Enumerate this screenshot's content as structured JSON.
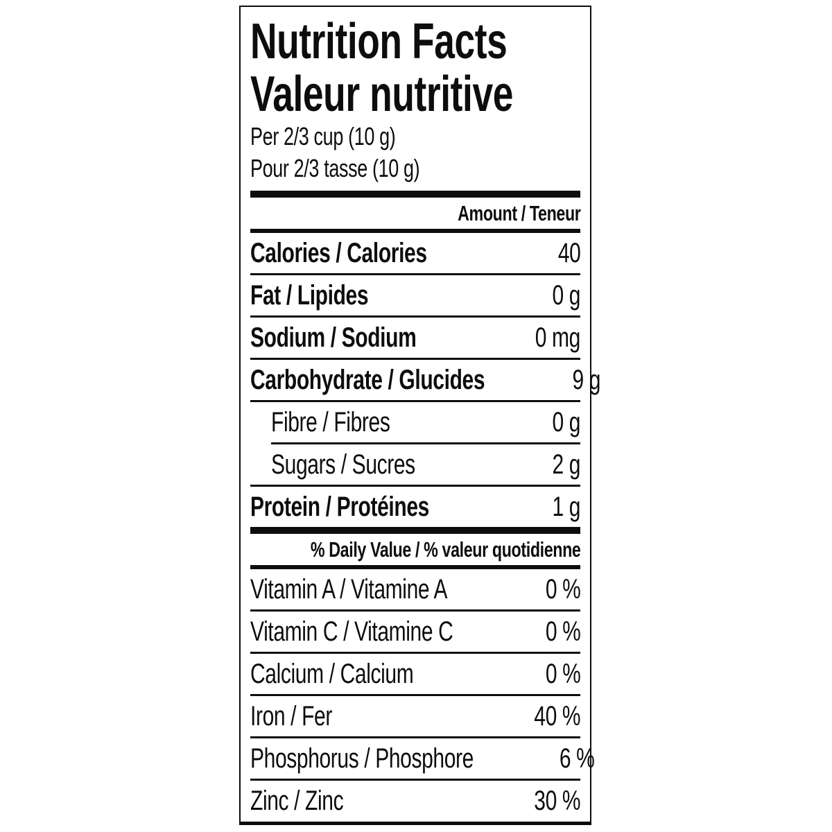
{
  "label": {
    "title_en": "Nutrition Facts",
    "title_fr": "Valeur nutritive",
    "serving_en": "Per 2/3 cup (10 g)",
    "serving_fr": "Pour 2/3 tasse (10 g)",
    "amount_header": "Amount / Teneur",
    "daily_value_header": "% Daily Value / % valeur quotidienne",
    "colors": {
      "text": "#0d0d0d",
      "background": "#ffffff",
      "rule": "#0d0d0d"
    }
  },
  "nutrients": [
    {
      "label": "Calories / Calories",
      "value": "40"
    },
    {
      "label": "Fat / Lipides",
      "value": "0 g"
    },
    {
      "label": "Sodium / Sodium",
      "value": "0 mg"
    },
    {
      "label": "Carbohydrate / Glucides",
      "value": "9 g"
    },
    {
      "label": "Fibre / Fibres",
      "value": "0 g"
    },
    {
      "label": "Sugars / Sucres",
      "value": "2 g"
    },
    {
      "label": "Protein / Protéines",
      "value": "1 g"
    }
  ],
  "daily_values": [
    {
      "label": "Vitamin A / Vitamine A",
      "value": "0 %"
    },
    {
      "label": "Vitamin C / Vitamine C",
      "value": "0 %"
    },
    {
      "label": "Calcium / Calcium",
      "value": "0 %"
    },
    {
      "label": "Iron / Fer",
      "value": "40 %"
    },
    {
      "label": "Phosphorus / Phosphore",
      "value": "6 %"
    },
    {
      "label": "Zinc / Zinc",
      "value": "30 %"
    }
  ]
}
